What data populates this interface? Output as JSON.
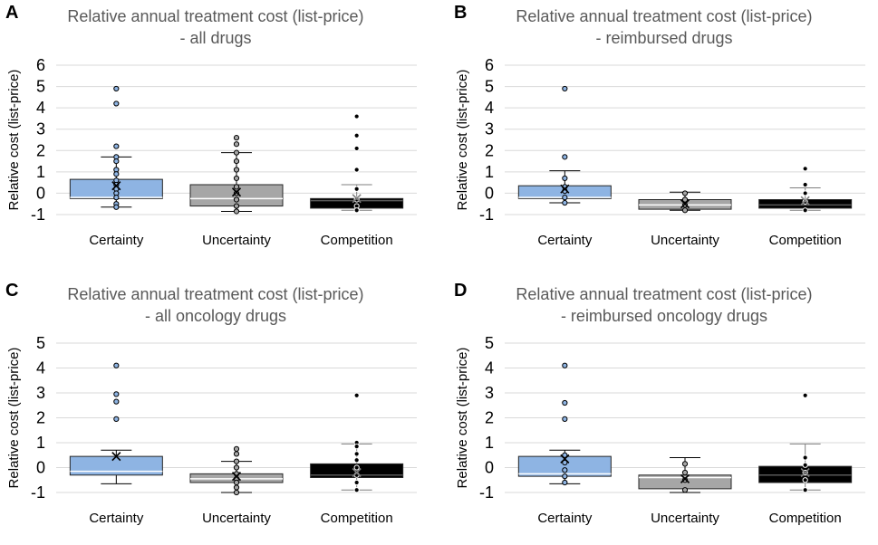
{
  "colors": {
    "certainty": "#8eb4e3",
    "uncertainty": "#a6a6a6",
    "competition": "#000000",
    "grid": "#d9d9d9",
    "title_text": "#595959",
    "axis_text": "#000000"
  },
  "chart_data": [
    {
      "type": "box",
      "panel_letter": "A",
      "title_line1": "Relative annual treatment cost (list-price)",
      "title_line2": "- all drugs",
      "ylabel": "Relative cost  (list-price)",
      "ylim": [
        -1,
        6
      ],
      "yticks": [
        "-1",
        "0",
        "1",
        "2",
        "3",
        "4",
        "5",
        "6"
      ],
      "grid": true,
      "categories": [
        "Certainty",
        "Uncertainty",
        "Competition"
      ],
      "boxes": [
        {
          "name": "Certainty",
          "color_key": "certainty",
          "whisker_low": -0.65,
          "q1": -0.25,
          "median": -0.2,
          "q3": 0.65,
          "whisker_high": 1.7,
          "mean": 0.35,
          "points": [
            4.9,
            4.2,
            2.2,
            1.7,
            1.5,
            1.1,
            0.9,
            0.6,
            0.4,
            0.2,
            0.0,
            -0.2,
            -0.5,
            -0.65
          ]
        },
        {
          "name": "Uncertainty",
          "color_key": "uncertainty",
          "whisker_low": -0.85,
          "q1": -0.6,
          "median": -0.25,
          "q3": 0.4,
          "whisker_high": 1.9,
          "mean": 0.05,
          "points": [
            2.6,
            2.3,
            1.9,
            1.5,
            1.1,
            0.7,
            0.3,
            0.0,
            -0.3,
            -0.6,
            -0.85
          ]
        },
        {
          "name": "Competition",
          "color_key": "competition",
          "whisker_low": -0.8,
          "q1": -0.7,
          "median": -0.35,
          "q3": -0.25,
          "whisker_high": 0.4,
          "mean": -0.25,
          "points": [
            3.6,
            2.7,
            2.1,
            1.1,
            0.2,
            -0.3,
            -0.6,
            -0.8
          ]
        }
      ]
    },
    {
      "type": "box",
      "panel_letter": "B",
      "title_line1": "Relative annual treatment cost (list-price)",
      "title_line2": "- reimbursed drugs",
      "ylabel": "Relative cost  (list-price)",
      "ylim": [
        -1,
        6
      ],
      "yticks": [
        "-1",
        "0",
        "1",
        "2",
        "3",
        "4",
        "5",
        "6"
      ],
      "grid": true,
      "categories": [
        "Certainty",
        "Uncertainty",
        "Competition"
      ],
      "boxes": [
        {
          "name": "Certainty",
          "color_key": "certainty",
          "whisker_low": -0.45,
          "q1": -0.25,
          "median": -0.2,
          "q3": 0.35,
          "whisker_high": 1.05,
          "mean": 0.2,
          "points": [
            4.9,
            1.7,
            0.7,
            0.3,
            0.1,
            -0.2,
            -0.45
          ]
        },
        {
          "name": "Uncertainty",
          "color_key": "uncertainty",
          "whisker_low": -0.8,
          "q1": -0.75,
          "median": -0.55,
          "q3": -0.3,
          "whisker_high": 0.05,
          "mean": -0.5,
          "points": [
            0.0,
            -0.3,
            -0.55,
            -0.8
          ]
        },
        {
          "name": "Competition",
          "color_key": "competition",
          "whisker_low": -0.8,
          "q1": -0.7,
          "median": -0.55,
          "q3": -0.3,
          "whisker_high": 0.25,
          "mean": -0.35,
          "points": [
            1.15,
            0.4,
            0.0,
            -0.4,
            -0.8
          ]
        }
      ]
    },
    {
      "type": "box",
      "panel_letter": "C",
      "title_line1": "Relative annual treatment cost (list-price)",
      "title_line2": "- all oncology drugs",
      "ylabel": "Relative cost  (list-price)",
      "ylim": [
        -1,
        5
      ],
      "yticks": [
        "-1",
        "0",
        "1",
        "2",
        "3",
        "4",
        "5"
      ],
      "grid": true,
      "categories": [
        "Certainty",
        "Uncertainty",
        "Competition"
      ],
      "boxes": [
        {
          "name": "Certainty",
          "color_key": "certainty",
          "whisker_low": -0.65,
          "q1": -0.3,
          "median": -0.15,
          "q3": 0.45,
          "whisker_high": 0.7,
          "mean": 0.45,
          "points": [
            4.1,
            2.95,
            2.65,
            1.95
          ]
        },
        {
          "name": "Uncertainty",
          "color_key": "uncertainty",
          "whisker_low": -1.0,
          "q1": -0.6,
          "median": -0.45,
          "q3": -0.25,
          "whisker_high": 0.25,
          "mean": -0.35,
          "points": [
            0.75,
            0.55,
            0.25,
            0.0,
            -0.25,
            -0.45,
            -0.6,
            -0.8,
            -1.0
          ]
        },
        {
          "name": "Competition",
          "color_key": "competition",
          "whisker_low": -0.9,
          "q1": -0.4,
          "median": -0.3,
          "q3": 0.15,
          "whisker_high": 0.95,
          "mean": -0.2,
          "points": [
            2.9,
            1.0,
            0.85,
            0.55,
            0.3,
            0.0,
            -0.3,
            -0.6,
            -0.9
          ]
        }
      ]
    },
    {
      "type": "box",
      "panel_letter": "D",
      "title_line1": "Relative annual treatment cost (list-price)",
      "title_line2": "- reimbursed oncology drugs",
      "ylabel": "Relative cost  (list-price)",
      "ylim": [
        -1,
        5
      ],
      "yticks": [
        "-1",
        "0",
        "1",
        "2",
        "3",
        "4",
        "5"
      ],
      "grid": true,
      "categories": [
        "Certainty",
        "Uncertainty",
        "Competition"
      ],
      "boxes": [
        {
          "name": "Certainty",
          "color_key": "certainty",
          "whisker_low": -0.65,
          "q1": -0.35,
          "median": -0.25,
          "q3": 0.45,
          "whisker_high": 0.7,
          "mean": 0.35,
          "points": [
            4.1,
            2.6,
            1.95,
            0.5,
            0.2,
            -0.1,
            -0.35,
            -0.6
          ]
        },
        {
          "name": "Uncertainty",
          "color_key": "uncertainty",
          "whisker_low": -1.0,
          "q1": -0.85,
          "median": -0.4,
          "q3": -0.3,
          "whisker_high": 0.4,
          "mean": -0.45,
          "points": [
            0.15,
            -0.2,
            -0.5,
            -0.9
          ]
        },
        {
          "name": "Competition",
          "color_key": "competition",
          "whisker_low": -0.9,
          "q1": -0.6,
          "median": -0.3,
          "q3": 0.05,
          "whisker_high": 0.95,
          "mean": -0.2,
          "points": [
            2.9,
            0.4,
            0.1,
            -0.2,
            -0.5,
            -0.9
          ]
        }
      ]
    }
  ]
}
